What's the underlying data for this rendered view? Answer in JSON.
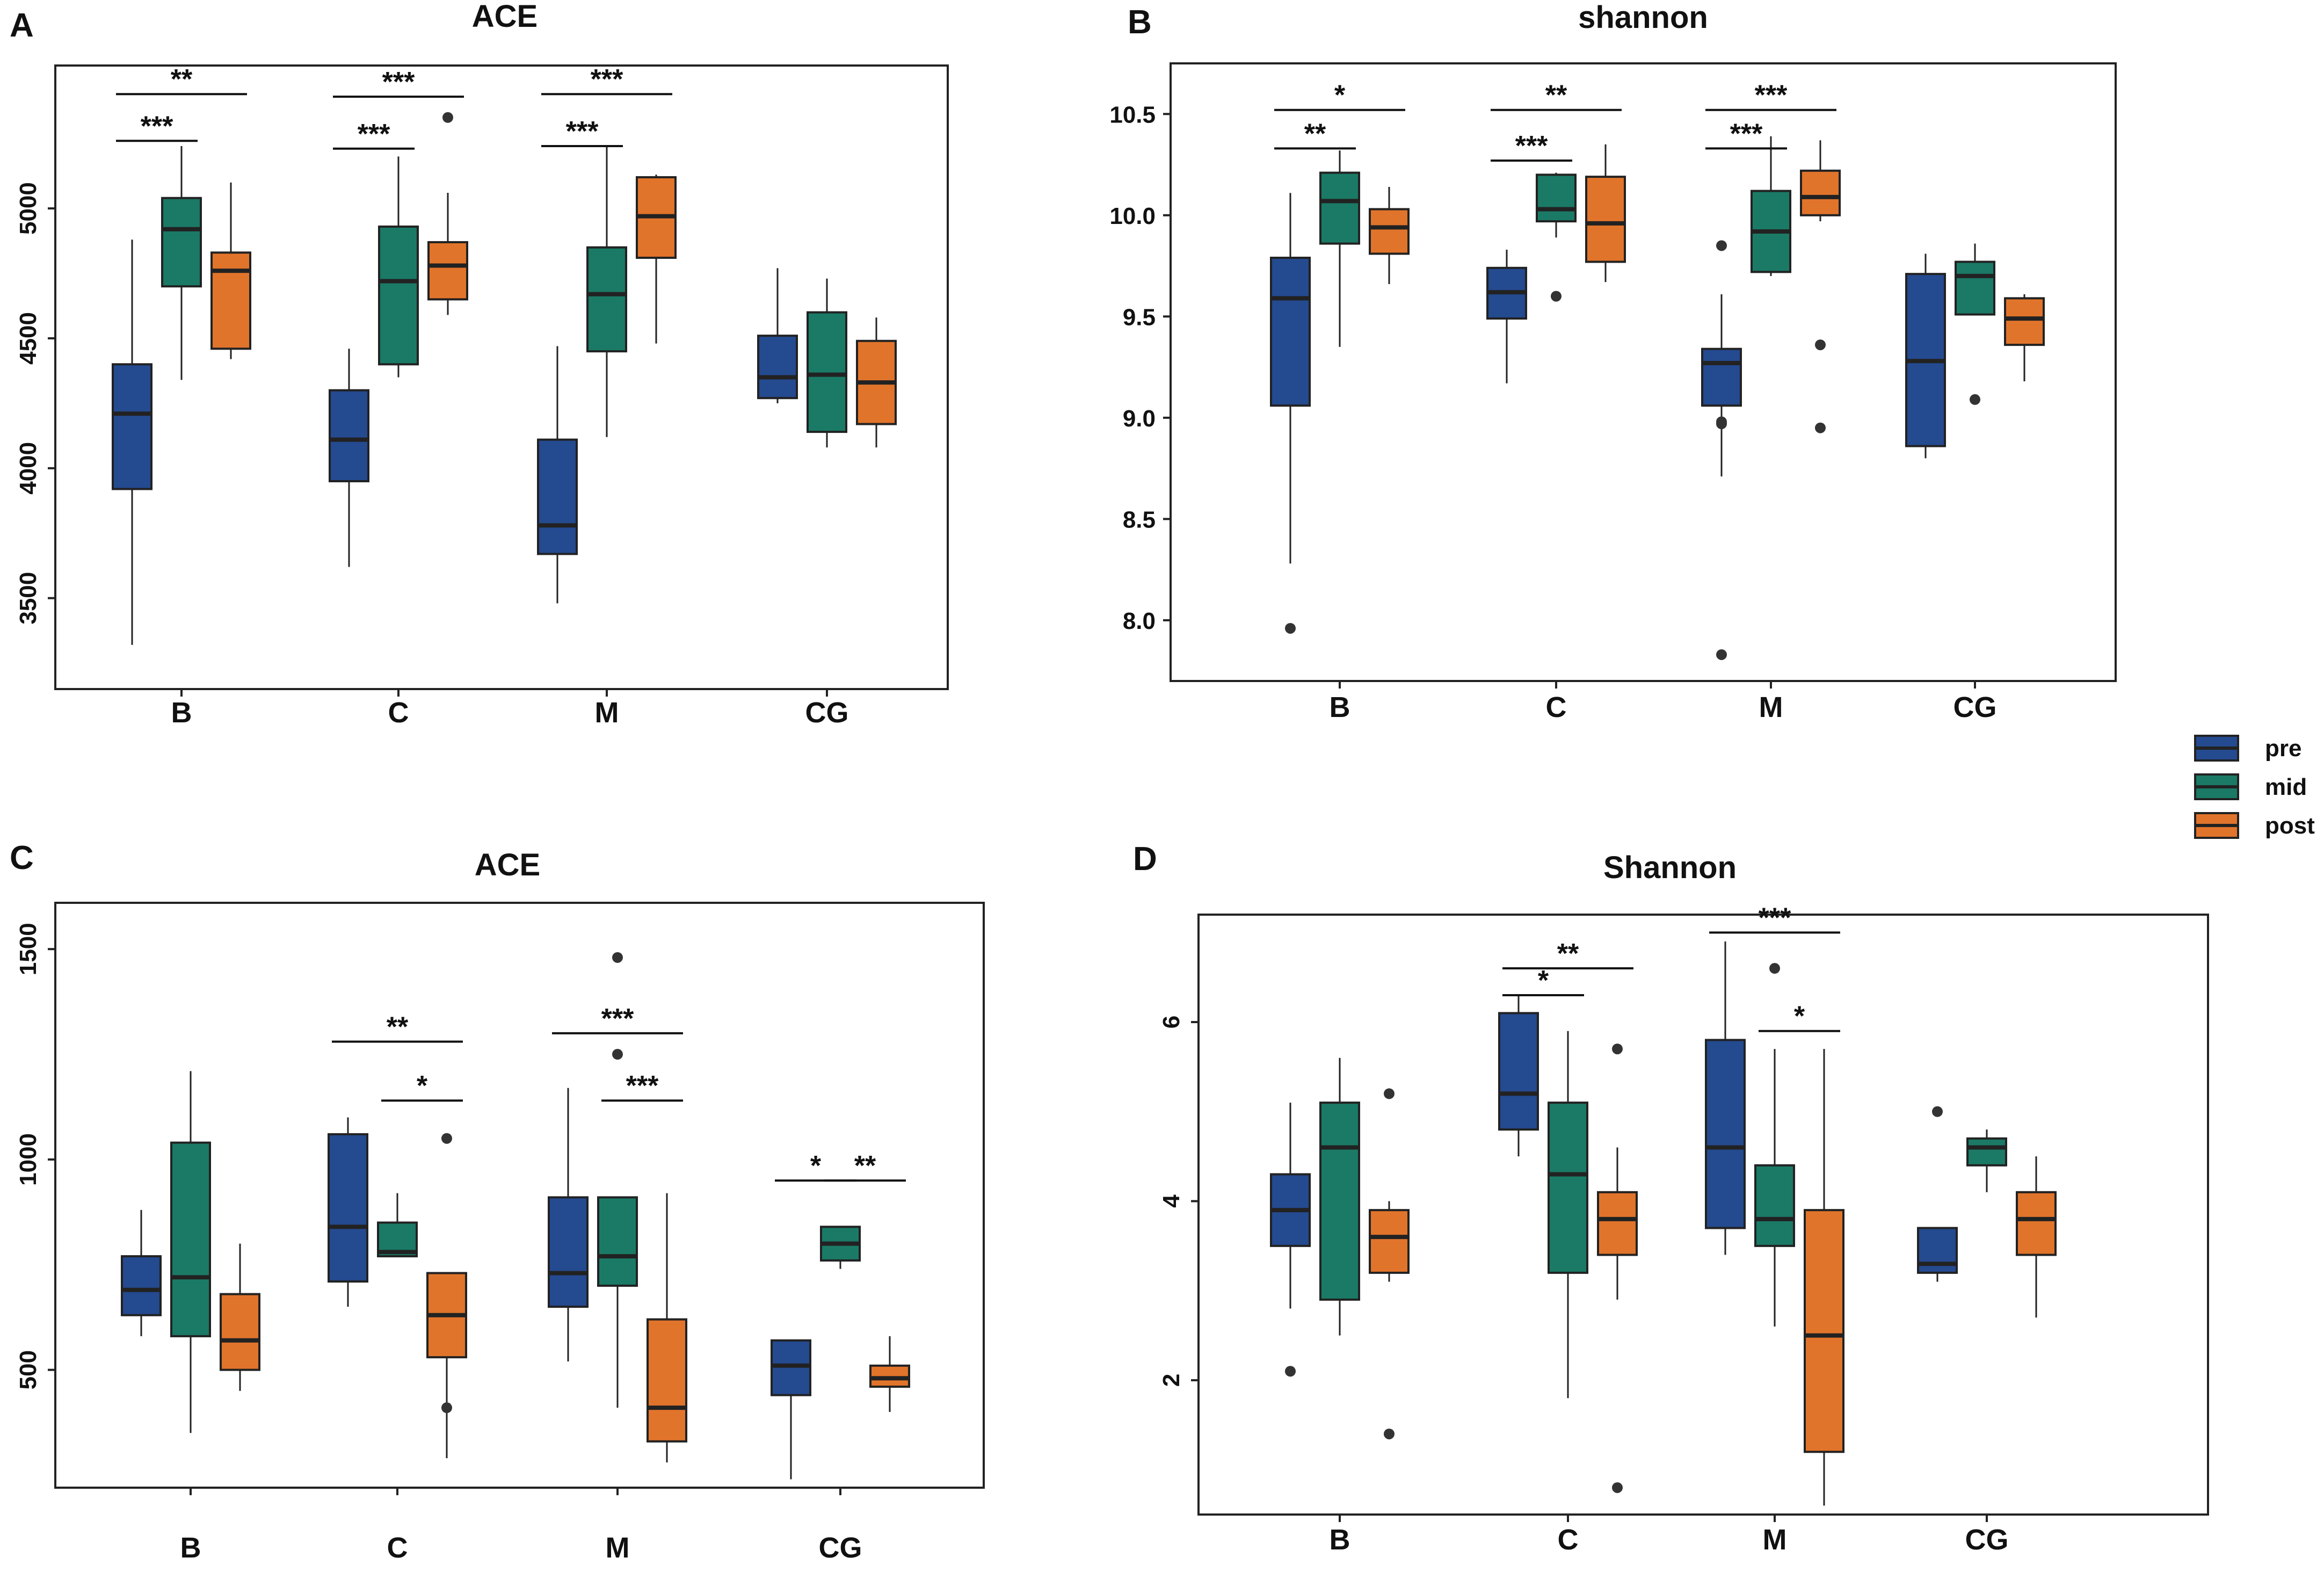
{
  "colors": {
    "pre": "#244a90",
    "mid": "#1a7a66",
    "post": "#e1742b",
    "outline": "#222222",
    "median": "#222222",
    "outlier": "#333333"
  },
  "legend": {
    "items": [
      {
        "key": "pre",
        "label": "pre"
      },
      {
        "key": "mid",
        "label": "mid"
      },
      {
        "key": "post",
        "label": "post"
      }
    ]
  },
  "chart_data": [
    {
      "panel": "A",
      "title": "ACE",
      "type": "box",
      "categories": [
        "B",
        "C",
        "M",
        "CG"
      ],
      "series_order": [
        "pre",
        "mid",
        "post"
      ],
      "ylim": [
        3150,
        5550
      ],
      "yticks": [
        3500,
        4000,
        4500,
        5000
      ],
      "boxes": [
        {
          "cat": "B",
          "series": "pre",
          "lo": 3320,
          "q1": 3920,
          "med": 4210,
          "q3": 4400,
          "hi": 4880,
          "out": []
        },
        {
          "cat": "B",
          "series": "mid",
          "lo": 4340,
          "q1": 4700,
          "med": 4920,
          "q3": 5040,
          "hi": 5240,
          "out": []
        },
        {
          "cat": "B",
          "series": "post",
          "lo": 4420,
          "q1": 4460,
          "med": 4760,
          "q3": 4830,
          "hi": 5100,
          "out": []
        },
        {
          "cat": "C",
          "series": "pre",
          "lo": 3620,
          "q1": 3950,
          "med": 4110,
          "q3": 4300,
          "hi": 4460,
          "out": []
        },
        {
          "cat": "C",
          "series": "mid",
          "lo": 4350,
          "q1": 4400,
          "med": 4720,
          "q3": 4930,
          "hi": 5200,
          "out": []
        },
        {
          "cat": "C",
          "series": "post",
          "lo": 4590,
          "q1": 4650,
          "med": 4780,
          "q3": 4870,
          "hi": 5060,
          "out": [
            5350
          ]
        },
        {
          "cat": "M",
          "series": "pre",
          "lo": 3480,
          "q1": 3670,
          "med": 3780,
          "q3": 4110,
          "hi": 4470,
          "out": []
        },
        {
          "cat": "M",
          "series": "mid",
          "lo": 4120,
          "q1": 4450,
          "med": 4670,
          "q3": 4850,
          "hi": 5240,
          "out": []
        },
        {
          "cat": "M",
          "series": "post",
          "lo": 4480,
          "q1": 4810,
          "med": 4970,
          "q3": 5120,
          "hi": 5130,
          "out": []
        },
        {
          "cat": "CG",
          "series": "pre",
          "lo": 4250,
          "q1": 4270,
          "med": 4350,
          "q3": 4510,
          "hi": 4770,
          "out": []
        },
        {
          "cat": "CG",
          "series": "mid",
          "lo": 4080,
          "q1": 4140,
          "med": 4360,
          "q3": 4600,
          "hi": 4730,
          "out": []
        },
        {
          "cat": "CG",
          "series": "post",
          "lo": 4080,
          "q1": 4170,
          "med": 4330,
          "q3": 4490,
          "hi": 4580,
          "out": []
        }
      ],
      "significance": [
        {
          "cat": "B",
          "from": "pre",
          "to": "post",
          "label": "**",
          "y": 5440
        },
        {
          "cat": "B",
          "from": "pre",
          "to": "mid",
          "label": "***",
          "y": 5260
        },
        {
          "cat": "C",
          "from": "pre",
          "to": "post",
          "label": "***",
          "y": 5430
        },
        {
          "cat": "C",
          "from": "pre",
          "to": "mid",
          "label": "***",
          "y": 5230
        },
        {
          "cat": "M",
          "from": "pre",
          "to": "post",
          "label": "***",
          "y": 5440
        },
        {
          "cat": "M",
          "from": "pre",
          "to": "mid",
          "label": "***",
          "y": 5240
        }
      ]
    },
    {
      "panel": "B",
      "title": "shannon",
      "type": "box",
      "categories": [
        "B",
        "C",
        "M",
        "CG"
      ],
      "series_order": [
        "pre",
        "mid",
        "post"
      ],
      "ylim": [
        7.7,
        10.75
      ],
      "yticks": [
        8.0,
        8.5,
        9.0,
        9.5,
        10.0,
        10.5
      ],
      "boxes": [
        {
          "cat": "B",
          "series": "pre",
          "lo": 8.28,
          "q1": 9.06,
          "med": 9.59,
          "q3": 9.79,
          "hi": 10.11,
          "out": [
            7.96
          ]
        },
        {
          "cat": "B",
          "series": "mid",
          "lo": 9.35,
          "q1": 9.86,
          "med": 10.07,
          "q3": 10.21,
          "hi": 10.32,
          "out": []
        },
        {
          "cat": "B",
          "series": "post",
          "lo": 9.66,
          "q1": 9.81,
          "med": 9.94,
          "q3": 10.03,
          "hi": 10.14,
          "out": []
        },
        {
          "cat": "C",
          "series": "pre",
          "lo": 9.17,
          "q1": 9.49,
          "med": 9.62,
          "q3": 9.74,
          "hi": 9.83,
          "out": []
        },
        {
          "cat": "C",
          "series": "mid",
          "lo": 9.89,
          "q1": 9.97,
          "med": 10.03,
          "q3": 10.2,
          "hi": 10.21,
          "out": [
            9.6
          ]
        },
        {
          "cat": "C",
          "series": "post",
          "lo": 9.67,
          "q1": 9.77,
          "med": 9.96,
          "q3": 10.19,
          "hi": 10.35,
          "out": []
        },
        {
          "cat": "M",
          "series": "pre",
          "lo": 8.71,
          "q1": 9.06,
          "med": 9.27,
          "q3": 9.34,
          "hi": 9.61,
          "out": [
            9.85,
            8.98,
            8.97,
            7.83
          ]
        },
        {
          "cat": "M",
          "series": "mid",
          "lo": 9.7,
          "q1": 9.72,
          "med": 9.92,
          "q3": 10.12,
          "hi": 10.39,
          "out": []
        },
        {
          "cat": "M",
          "series": "post",
          "lo": 9.97,
          "q1": 10.0,
          "med": 10.09,
          "q3": 10.22,
          "hi": 10.37,
          "out": [
            9.36,
            8.95
          ]
        },
        {
          "cat": "CG",
          "series": "pre",
          "lo": 8.8,
          "q1": 8.86,
          "med": 9.28,
          "q3": 9.71,
          "hi": 9.81,
          "out": []
        },
        {
          "cat": "CG",
          "series": "mid",
          "lo": 9.51,
          "q1": 9.51,
          "med": 9.7,
          "q3": 9.77,
          "hi": 9.86,
          "out": [
            9.09
          ]
        },
        {
          "cat": "CG",
          "series": "post",
          "lo": 9.18,
          "q1": 9.36,
          "med": 9.49,
          "q3": 9.59,
          "hi": 9.61,
          "out": []
        }
      ],
      "significance": [
        {
          "cat": "B",
          "from": "pre",
          "to": "post",
          "label": "*",
          "y": 10.52
        },
        {
          "cat": "B",
          "from": "pre",
          "to": "mid",
          "label": "**",
          "y": 10.33
        },
        {
          "cat": "C",
          "from": "pre",
          "to": "post",
          "label": "**",
          "y": 10.52
        },
        {
          "cat": "C",
          "from": "pre",
          "to": "mid",
          "label": "***",
          "y": 10.27
        },
        {
          "cat": "M",
          "from": "pre",
          "to": "post",
          "label": "***",
          "y": 10.52
        },
        {
          "cat": "M",
          "from": "pre",
          "to": "mid",
          "label": "***",
          "y": 10.33
        }
      ]
    },
    {
      "panel": "C",
      "title": "ACE",
      "type": "box",
      "categories": [
        "B",
        "C",
        "M",
        "CG"
      ],
      "series_order": [
        "pre",
        "mid",
        "post"
      ],
      "ylim": [
        220,
        1610
      ],
      "yticks": [
        500,
        1000,
        1500
      ],
      "boxes": [
        {
          "cat": "B",
          "series": "pre",
          "lo": 580,
          "q1": 630,
          "med": 690,
          "q3": 770,
          "hi": 880,
          "out": []
        },
        {
          "cat": "B",
          "series": "mid",
          "lo": 350,
          "q1": 580,
          "med": 720,
          "q3": 1040,
          "hi": 1210,
          "out": []
        },
        {
          "cat": "B",
          "series": "post",
          "lo": 450,
          "q1": 500,
          "med": 570,
          "q3": 680,
          "hi": 800,
          "out": []
        },
        {
          "cat": "C",
          "series": "pre",
          "lo": 650,
          "q1": 710,
          "med": 840,
          "q3": 1060,
          "hi": 1100,
          "out": []
        },
        {
          "cat": "C",
          "series": "mid",
          "lo": 770,
          "q1": 770,
          "med": 780,
          "q3": 850,
          "hi": 920,
          "out": []
        },
        {
          "cat": "C",
          "series": "post",
          "lo": 290,
          "q1": 530,
          "med": 630,
          "q3": 730,
          "hi": 730,
          "out": [
            410,
            1050
          ]
        },
        {
          "cat": "M",
          "series": "pre",
          "lo": 520,
          "q1": 650,
          "med": 730,
          "q3": 910,
          "hi": 1170,
          "out": []
        },
        {
          "cat": "M",
          "series": "mid",
          "lo": 410,
          "q1": 700,
          "med": 770,
          "q3": 910,
          "hi": 910,
          "out": [
            1250,
            1480
          ]
        },
        {
          "cat": "M",
          "series": "post",
          "lo": 280,
          "q1": 330,
          "med": 410,
          "q3": 620,
          "hi": 920,
          "out": []
        },
        {
          "cat": "CG",
          "series": "pre",
          "lo": 240,
          "q1": 440,
          "med": 510,
          "q3": 570,
          "hi": 570,
          "out": []
        },
        {
          "cat": "CG",
          "series": "mid",
          "lo": 740,
          "q1": 760,
          "med": 800,
          "q3": 840,
          "hi": 840,
          "out": []
        },
        {
          "cat": "CG",
          "series": "post",
          "lo": 400,
          "q1": 460,
          "med": 480,
          "q3": 510,
          "hi": 580,
          "out": []
        }
      ],
      "significance": [
        {
          "cat": "C",
          "from": "pre",
          "to": "post",
          "label": "**",
          "y": 1280
        },
        {
          "cat": "C",
          "from": "mid",
          "to": "post",
          "label": "*",
          "y": 1140
        },
        {
          "cat": "M",
          "from": "pre",
          "to": "post",
          "label": "***",
          "y": 1300
        },
        {
          "cat": "M",
          "from": "mid",
          "to": "post",
          "label": "***",
          "y": 1140
        },
        {
          "cat": "CG",
          "from": "pre",
          "to": "mid",
          "label": "*",
          "y": 950
        },
        {
          "cat": "CG",
          "from": "mid",
          "to": "post",
          "label": "**",
          "y": 950
        }
      ]
    },
    {
      "panel": "D",
      "title": "Shannon",
      "type": "box",
      "categories": [
        "B",
        "C",
        "M",
        "CG"
      ],
      "series_order": [
        "pre",
        "mid",
        "post"
      ],
      "ylim": [
        0.5,
        7.2
      ],
      "yticks": [
        2,
        4,
        6
      ],
      "boxes": [
        {
          "cat": "B",
          "series": "pre",
          "lo": 2.8,
          "q1": 3.5,
          "med": 3.9,
          "q3": 4.3,
          "hi": 5.1,
          "out": [
            2.1
          ]
        },
        {
          "cat": "B",
          "series": "mid",
          "lo": 2.5,
          "q1": 2.9,
          "med": 4.6,
          "q3": 5.1,
          "hi": 5.6,
          "out": []
        },
        {
          "cat": "B",
          "series": "post",
          "lo": 3.1,
          "q1": 3.2,
          "med": 3.6,
          "q3": 3.9,
          "hi": 4.0,
          "out": [
            5.2,
            1.4
          ]
        },
        {
          "cat": "C",
          "series": "pre",
          "lo": 4.5,
          "q1": 4.8,
          "med": 5.2,
          "q3": 6.1,
          "hi": 6.3,
          "out": []
        },
        {
          "cat": "C",
          "series": "mid",
          "lo": 1.8,
          "q1": 3.2,
          "med": 4.3,
          "q3": 5.1,
          "hi": 5.9,
          "out": []
        },
        {
          "cat": "C",
          "series": "post",
          "lo": 2.9,
          "q1": 3.4,
          "med": 3.8,
          "q3": 4.1,
          "hi": 4.6,
          "out": [
            5.7,
            0.8
          ]
        },
        {
          "cat": "M",
          "series": "pre",
          "lo": 3.4,
          "q1": 3.7,
          "med": 4.6,
          "q3": 5.8,
          "hi": 6.9,
          "out": []
        },
        {
          "cat": "M",
          "series": "mid",
          "lo": 2.6,
          "q1": 3.5,
          "med": 3.8,
          "q3": 4.4,
          "hi": 5.7,
          "out": [
            6.6
          ]
        },
        {
          "cat": "M",
          "series": "post",
          "lo": 0.6,
          "q1": 1.2,
          "med": 2.5,
          "q3": 3.9,
          "hi": 5.7,
          "out": []
        },
        {
          "cat": "CG",
          "series": "pre",
          "lo": 3.1,
          "q1": 3.2,
          "med": 3.3,
          "q3": 3.7,
          "hi": 3.7,
          "out": [
            5.0
          ]
        },
        {
          "cat": "CG",
          "series": "mid",
          "lo": 4.1,
          "q1": 4.4,
          "med": 4.6,
          "q3": 4.7,
          "hi": 4.8,
          "out": []
        },
        {
          "cat": "CG",
          "series": "post",
          "lo": 2.7,
          "q1": 3.4,
          "med": 3.8,
          "q3": 4.1,
          "hi": 4.5,
          "out": []
        }
      ],
      "significance": [
        {
          "cat": "C",
          "from": "pre",
          "to": "post",
          "label": "**",
          "y": 6.6
        },
        {
          "cat": "C",
          "from": "pre",
          "to": "mid",
          "label": "*",
          "y": 6.3
        },
        {
          "cat": "M",
          "from": "pre",
          "to": "post",
          "label": "***",
          "y": 7.0
        },
        {
          "cat": "M",
          "from": "mid",
          "to": "post",
          "label": "*",
          "y": 5.9
        }
      ]
    }
  ]
}
